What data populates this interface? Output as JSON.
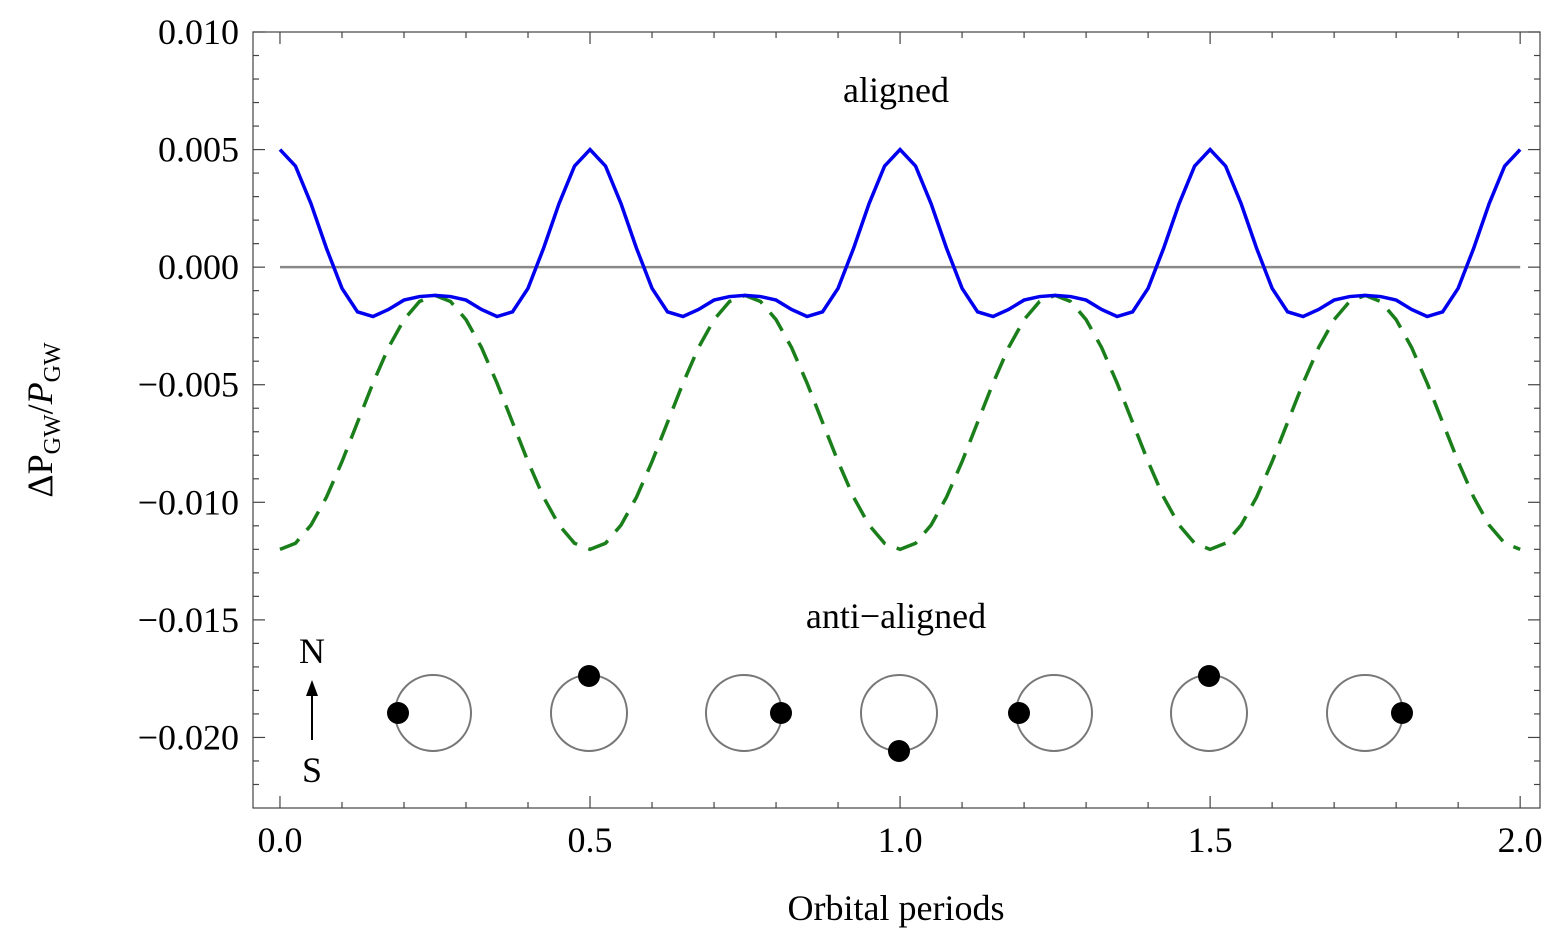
{
  "chart_data": {
    "type": "line",
    "xlabel": "Orbital periods",
    "ylabel_parts": [
      "ΔP",
      "GW",
      "/",
      "P",
      "GW"
    ],
    "annotations": [
      {
        "text": "aligned",
        "color": "#0000ee"
      },
      {
        "text": "anti−aligned",
        "color": "#1a7f1a"
      }
    ],
    "orbit_labels": [
      "N",
      "S"
    ],
    "xlim": [
      -0.0435,
      2.032
    ],
    "ylim": [
      -0.023,
      0.01
    ],
    "xticks": [
      {
        "value": 0,
        "label": "0.0"
      },
      {
        "value": 0.5,
        "label": "0.5"
      },
      {
        "value": 1,
        "label": "1.0"
      },
      {
        "value": 1.5,
        "label": "1.5"
      },
      {
        "value": 2,
        "label": "2.0"
      }
    ],
    "xminorticks": [
      0.1,
      0.2,
      0.3,
      0.4,
      0.6,
      0.7,
      0.8,
      0.9,
      1.1,
      1.2,
      1.3,
      1.4,
      1.6,
      1.7,
      1.8,
      1.9
    ],
    "yticks": [
      {
        "value": 0.01,
        "label": "0.010"
      },
      {
        "value": 0.005,
        "label": "0.005"
      },
      {
        "value": 0,
        "label": "0.000"
      },
      {
        "value": -0.005,
        "label": "−0.005"
      },
      {
        "value": -0.01,
        "label": "−0.010"
      },
      {
        "value": -0.015,
        "label": "−0.015"
      },
      {
        "value": -0.02,
        "label": "−0.020"
      }
    ],
    "yminorticks": [
      0.009,
      0.008,
      0.007,
      0.006,
      0.004,
      0.003,
      0.002,
      0.001,
      -0.001,
      -0.002,
      -0.003,
      -0.004,
      -0.006,
      -0.007,
      -0.008,
      -0.009,
      -0.011,
      -0.012,
      -0.013,
      -0.014,
      -0.016,
      -0.017,
      -0.018,
      -0.019,
      -0.021,
      -0.022
    ],
    "hline": {
      "value": 0,
      "color": "#888888"
    },
    "x": [
      0,
      0.025,
      0.05,
      0.075,
      0.1,
      0.125,
      0.15,
      0.175,
      0.2,
      0.225,
      0.25,
      0.275,
      0.3,
      0.325,
      0.35,
      0.375,
      0.4,
      0.425,
      0.45,
      0.475,
      0.5,
      0.525,
      0.55,
      0.575,
      0.6,
      0.625,
      0.65,
      0.675,
      0.7,
      0.725,
      0.75,
      0.775,
      0.8,
      0.825,
      0.85,
      0.875,
      0.9,
      0.925,
      0.95,
      0.975,
      1,
      1.025,
      1.05,
      1.075,
      1.1,
      1.125,
      1.15,
      1.175,
      1.2,
      1.225,
      1.25,
      1.275,
      1.3,
      1.325,
      1.35,
      1.375,
      1.4,
      1.425,
      1.45,
      1.475,
      1.5,
      1.525,
      1.55,
      1.575,
      1.6,
      1.625,
      1.65,
      1.675,
      1.7,
      1.725,
      1.75,
      1.775,
      1.8,
      1.825,
      1.85,
      1.875,
      1.9,
      1.925,
      1.95,
      1.975,
      2
    ],
    "series": [
      {
        "name": "aligned",
        "color": "#0000ee",
        "dash": false,
        "values": [
          0.005,
          0.0043,
          0.0027,
          0.0008,
          -0.0009,
          -0.0019,
          -0.0021,
          -0.0018,
          -0.0014,
          -0.00125,
          -0.0012,
          -0.00125,
          -0.0014,
          -0.0018,
          -0.0021,
          -0.0019,
          -0.0009,
          0.0008,
          0.0027,
          0.0043,
          0.005,
          0.0043,
          0.0027,
          0.0008,
          -0.0009,
          -0.0019,
          -0.0021,
          -0.0018,
          -0.0014,
          -0.00125,
          -0.0012,
          -0.00125,
          -0.0014,
          -0.0018,
          -0.0021,
          -0.0019,
          -0.0009,
          0.0008,
          0.0027,
          0.0043,
          0.005,
          0.0043,
          0.0027,
          0.0008,
          -0.0009,
          -0.0019,
          -0.0021,
          -0.0018,
          -0.0014,
          -0.00125,
          -0.0012,
          -0.00125,
          -0.0014,
          -0.0018,
          -0.0021,
          -0.0019,
          -0.0009,
          0.0008,
          0.0027,
          0.0043,
          0.005,
          0.0043,
          0.0027,
          0.0008,
          -0.0009,
          -0.0019,
          -0.0021,
          -0.0018,
          -0.0014,
          -0.00125,
          -0.0012,
          -0.00125,
          -0.0014,
          -0.0018,
          -0.0021,
          -0.0019,
          -0.0009,
          0.0008,
          0.0027,
          0.0043,
          0.005
        ]
      },
      {
        "name": "anti−aligned",
        "color": "#1a7f1a",
        "dash": true,
        "values": [
          -0.012,
          -0.01174,
          -0.01097,
          -0.00978,
          -0.00827,
          -0.0066,
          -0.00493,
          -0.00342,
          -0.00223,
          -0.00146,
          -0.0012,
          -0.00146,
          -0.00223,
          -0.00342,
          -0.00493,
          -0.0066,
          -0.00827,
          -0.00978,
          -0.01097,
          -0.01174,
          -0.012,
          -0.01174,
          -0.01097,
          -0.00978,
          -0.00827,
          -0.0066,
          -0.00493,
          -0.00342,
          -0.00223,
          -0.00146,
          -0.0012,
          -0.00146,
          -0.00223,
          -0.00342,
          -0.00493,
          -0.0066,
          -0.00827,
          -0.00978,
          -0.01097,
          -0.01174,
          -0.012,
          -0.01174,
          -0.01097,
          -0.00978,
          -0.00827,
          -0.0066,
          -0.00493,
          -0.00342,
          -0.00223,
          -0.00146,
          -0.0012,
          -0.00146,
          -0.00223,
          -0.00342,
          -0.00493,
          -0.0066,
          -0.00827,
          -0.00978,
          -0.01097,
          -0.01174,
          -0.012,
          -0.01174,
          -0.01097,
          -0.00978,
          -0.00827,
          -0.0066,
          -0.00493,
          -0.00342,
          -0.00223,
          -0.00146,
          -0.0012,
          -0.00146,
          -0.00223,
          -0.00342,
          -0.00493,
          -0.0066,
          -0.00827,
          -0.00978,
          -0.01097,
          -0.01174,
          -0.012
        ]
      }
    ]
  }
}
